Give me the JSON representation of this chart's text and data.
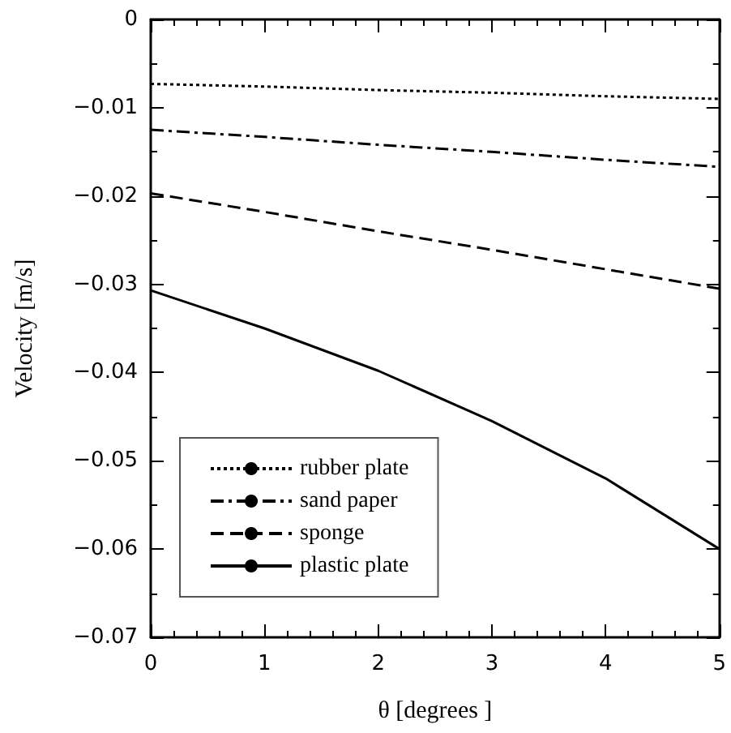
{
  "chart_data": {
    "type": "line",
    "xlabel": "θ [degrees ]",
    "ylabel": "Velocity [m/s]",
    "x": [
      0,
      1,
      2,
      3,
      4,
      5
    ],
    "series": [
      {
        "name": "rubber plate",
        "color": "#000000",
        "line_style": "dotted",
        "values": [
          -0.0073,
          -0.0076,
          -0.008,
          -0.0083,
          -0.0087,
          -0.009
        ]
      },
      {
        "name": "sand paper",
        "color": "#000000",
        "line_style": "dashdot",
        "values": [
          -0.0125,
          -0.0133,
          -0.0142,
          -0.015,
          -0.0159,
          -0.0167
        ]
      },
      {
        "name": "sponge",
        "color": "#000000",
        "line_style": "dashed",
        "values": [
          -0.0197,
          -0.0218,
          -0.024,
          -0.0261,
          -0.0283,
          -0.0305
        ]
      },
      {
        "name": "plastic plate",
        "color": "#000000",
        "line_style": "solid",
        "values": [
          -0.0307,
          -0.035,
          -0.0398,
          -0.0455,
          -0.052,
          -0.06
        ]
      }
    ],
    "xlim": [
      0,
      5
    ],
    "xticks": [
      0,
      1,
      2,
      3,
      4,
      5
    ],
    "ylim": [
      -0.07,
      0
    ],
    "yticks": [
      -0.07,
      -0.06,
      -0.05,
      -0.04,
      -0.03,
      -0.02,
      -0.01,
      0
    ],
    "grid": false,
    "legend": "bottom left",
    "marker": "none"
  }
}
